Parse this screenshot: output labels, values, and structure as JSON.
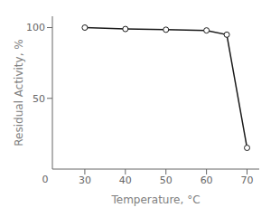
{
  "chart_data": {
    "type": "line",
    "x": [
      30,
      40,
      50,
      60,
      65,
      70
    ],
    "values": [
      100,
      99,
      98.5,
      98,
      95,
      15
    ],
    "xlabel": "Temperature, °C",
    "ylabel": "Residual Activity, %",
    "xlim": [
      22,
      73
    ],
    "ylim": [
      0,
      108
    ],
    "xticks": [
      30,
      40,
      50,
      60,
      70
    ],
    "yticks": [
      50,
      100
    ],
    "color": "#1a1a1a",
    "marker": "circle",
    "grid": false,
    "annotations": [
      {
        "text": "0"
      }
    ]
  }
}
